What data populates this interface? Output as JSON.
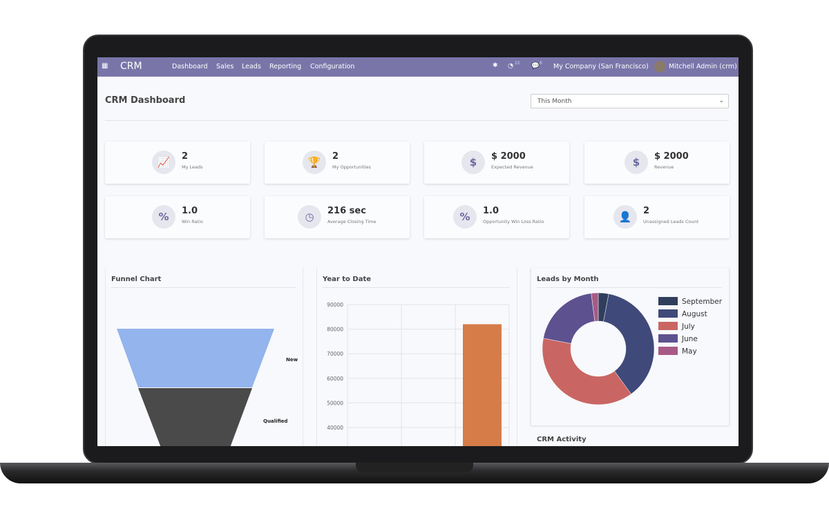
{
  "nav": {
    "app": "CRM",
    "menu": [
      "Dashboard",
      "Sales",
      "Leads",
      "Reporting",
      "Configuration"
    ],
    "activity_count": "22",
    "message_count": "6",
    "company": "My Company (San Francisco)",
    "user": "Mitchell Admin (crm)"
  },
  "header": {
    "title": "CRM Dashboard",
    "period": "This Month"
  },
  "cards": [
    {
      "icon": "chart-line-icon",
      "glyph": "📈",
      "value": "2",
      "label": "My Leads"
    },
    {
      "icon": "trophy-icon",
      "glyph": "🏆",
      "value": "2",
      "label": "My Opportunities"
    },
    {
      "icon": "dollar-icon",
      "glyph": "$",
      "value": "$ 2000",
      "label": "Expected Revenue"
    },
    {
      "icon": "dollar-icon",
      "glyph": "$",
      "value": "$ 2000",
      "label": "Revenue"
    },
    {
      "icon": "percent-icon",
      "glyph": "%",
      "value": "1.0",
      "label": "Win Ratio"
    },
    {
      "icon": "clock-icon",
      "glyph": "◷",
      "value": "216 sec",
      "label": "Average Closing Time"
    },
    {
      "icon": "percent-icon",
      "glyph": "%",
      "value": "1.0",
      "label": "Opportunity Win Loss Ratio"
    },
    {
      "icon": "user-x-icon",
      "glyph": "👤",
      "value": "2",
      "label": "Unassigned Leads Count"
    }
  ],
  "panels": {
    "funnel": "Funnel Chart",
    "ytd": "Year to Date",
    "leads": "Leads by Month",
    "activity": "CRM Activity"
  },
  "chart_data": [
    {
      "type": "funnel",
      "title": "Funnel Chart",
      "stages": [
        "New",
        "Qualified"
      ],
      "colors": [
        "#93b4ec",
        "#4a4a4a"
      ]
    },
    {
      "type": "bar",
      "title": "Year to Date",
      "categories": [
        "",
        "",
        ""
      ],
      "values": [
        null,
        null,
        82000
      ],
      "yticks": [
        90000,
        80000,
        70000,
        60000,
        50000,
        40000
      ],
      "ylim": [
        0,
        90000
      ],
      "color": "#d67c48",
      "grid": true
    },
    {
      "type": "pie",
      "title": "Leads by Month",
      "donut": true,
      "labels": [
        "September",
        "August",
        "July",
        "June",
        "May"
      ],
      "values": [
        3,
        37,
        38,
        20,
        2
      ],
      "colors": [
        "#2f3e5c",
        "#3f4a7a",
        "#c96663",
        "#5e5190",
        "#a85a86"
      ],
      "legend": "right"
    }
  ]
}
